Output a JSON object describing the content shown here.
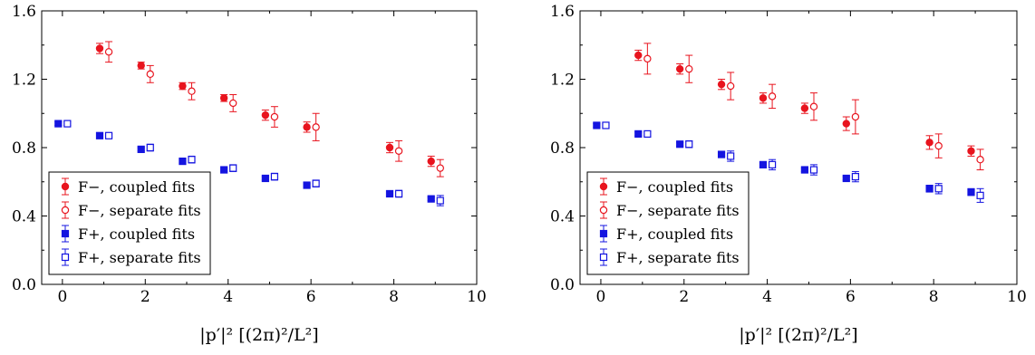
{
  "colors": {
    "red": "#e8141e",
    "blue": "#1414e0",
    "axis": "#000000"
  },
  "chart_data": [
    {
      "type": "scatter",
      "xlabel": "|p′|² [(2π)²/L²]",
      "xlim": [
        -0.5,
        10
      ],
      "ylim": [
        0.0,
        1.6
      ],
      "xticks": [
        0,
        2,
        4,
        6,
        8,
        10
      ],
      "yticks": [
        0.0,
        0.4,
        0.8,
        1.2,
        1.6
      ],
      "ytick_labels": [
        "0.0",
        "0.4",
        "0.8",
        "1.2",
        "1.6"
      ],
      "grid": false,
      "legend_position": "bottom-left",
      "series": [
        {
          "name": "F−, coupled fits",
          "color": "red",
          "marker": "circle-filled",
          "x": [
            1,
            2,
            3,
            4,
            5,
            6,
            8,
            9
          ],
          "y": [
            1.38,
            1.28,
            1.16,
            1.09,
            0.99,
            0.92,
            0.8,
            0.72
          ],
          "err": [
            0.03,
            0.02,
            0.02,
            0.02,
            0.03,
            0.03,
            0.03,
            0.03
          ]
        },
        {
          "name": "F−, separate fits",
          "color": "red",
          "marker": "circle-open",
          "x": [
            1,
            2,
            3,
            4,
            5,
            6,
            8,
            9
          ],
          "y": [
            1.36,
            1.23,
            1.13,
            1.06,
            0.98,
            0.92,
            0.78,
            0.68
          ],
          "err": [
            0.06,
            0.05,
            0.05,
            0.05,
            0.06,
            0.08,
            0.06,
            0.05
          ]
        },
        {
          "name": "F+, coupled fits",
          "color": "blue",
          "marker": "square-filled",
          "x": [
            0,
            1,
            2,
            3,
            4,
            5,
            6,
            8,
            9
          ],
          "y": [
            0.94,
            0.87,
            0.79,
            0.72,
            0.67,
            0.62,
            0.58,
            0.53,
            0.5
          ],
          "err": [
            0.01,
            0.01,
            0.01,
            0.01,
            0.01,
            0.01,
            0.01,
            0.01,
            0.01
          ]
        },
        {
          "name": "F+, separate fits",
          "color": "blue",
          "marker": "square-open",
          "x": [
            0,
            1,
            2,
            3,
            4,
            5,
            6,
            8,
            9
          ],
          "y": [
            0.94,
            0.87,
            0.8,
            0.73,
            0.68,
            0.63,
            0.59,
            0.53,
            0.49
          ],
          "err": [
            0.01,
            0.01,
            0.02,
            0.02,
            0.02,
            0.02,
            0.02,
            0.02,
            0.03
          ]
        }
      ]
    },
    {
      "type": "scatter",
      "xlabel": "|p′|² [(2π)²/L²]",
      "xlim": [
        -0.5,
        10
      ],
      "ylim": [
        0.0,
        1.6
      ],
      "xticks": [
        0,
        2,
        4,
        6,
        8,
        10
      ],
      "yticks": [
        0.0,
        0.4,
        0.8,
        1.2,
        1.6
      ],
      "ytick_labels": [
        "0.0",
        "0.4",
        "0.8",
        "1.2",
        "1.6"
      ],
      "grid": false,
      "legend_position": "bottom-left",
      "series": [
        {
          "name": "F−, coupled fits",
          "color": "red",
          "marker": "circle-filled",
          "x": [
            1,
            2,
            3,
            4,
            5,
            6,
            8,
            9
          ],
          "y": [
            1.34,
            1.26,
            1.17,
            1.09,
            1.03,
            0.94,
            0.83,
            0.78
          ],
          "err": [
            0.03,
            0.03,
            0.03,
            0.03,
            0.03,
            0.04,
            0.04,
            0.03
          ]
        },
        {
          "name": "F−, separate fits",
          "color": "red",
          "marker": "circle-open",
          "x": [
            1,
            2,
            3,
            4,
            5,
            6,
            8,
            9
          ],
          "y": [
            1.32,
            1.26,
            1.16,
            1.1,
            1.04,
            0.98,
            0.81,
            0.73
          ],
          "err": [
            0.09,
            0.08,
            0.08,
            0.07,
            0.08,
            0.1,
            0.07,
            0.06
          ]
        },
        {
          "name": "F+, coupled fits",
          "color": "blue",
          "marker": "square-filled",
          "x": [
            0,
            1,
            2,
            3,
            4,
            5,
            6,
            8,
            9
          ],
          "y": [
            0.93,
            0.88,
            0.82,
            0.76,
            0.7,
            0.67,
            0.62,
            0.56,
            0.54
          ],
          "err": [
            0.01,
            0.01,
            0.01,
            0.01,
            0.01,
            0.01,
            0.01,
            0.02,
            0.02
          ]
        },
        {
          "name": "F+, separate fits",
          "color": "blue",
          "marker": "square-open",
          "x": [
            0,
            1,
            2,
            3,
            4,
            5,
            6,
            8,
            9
          ],
          "y": [
            0.93,
            0.88,
            0.82,
            0.75,
            0.7,
            0.67,
            0.63,
            0.56,
            0.52
          ],
          "err": [
            0.01,
            0.01,
            0.02,
            0.03,
            0.03,
            0.03,
            0.03,
            0.03,
            0.04
          ]
        }
      ]
    }
  ]
}
